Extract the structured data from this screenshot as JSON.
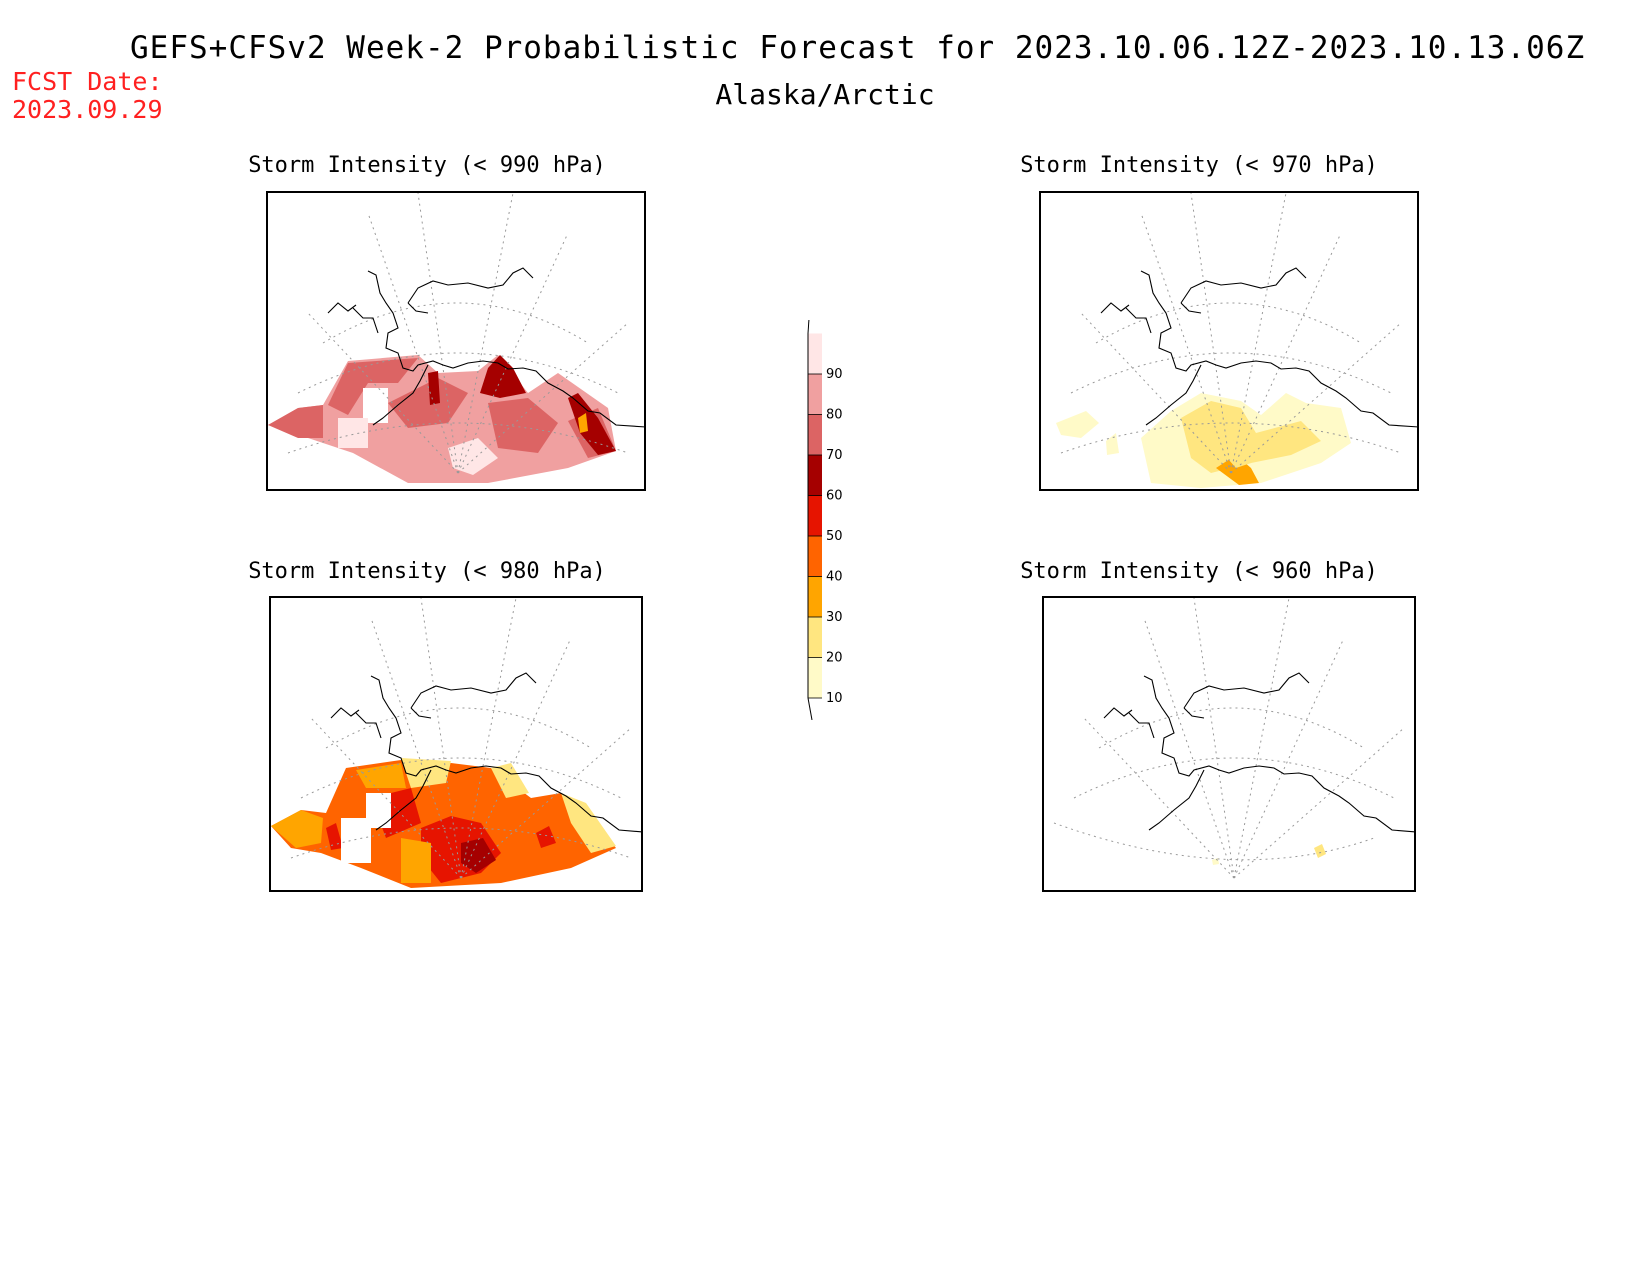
{
  "header": {
    "title": "GEFS+CFSv2 Week-2 Probabilistic Forecast for 2023.10.06.12Z-2023.10.13.06Z",
    "subtitle": "Alaska/Arctic",
    "fcst_label": "FCST Date:",
    "fcst_date": "2023.09.29"
  },
  "panels": [
    {
      "title": "Storm Intensity (< 990 hPa)",
      "intensity": "high"
    },
    {
      "title": "Storm Intensity (< 970 hPa)",
      "intensity": "low"
    },
    {
      "title": "Storm Intensity (< 980 hPa)",
      "intensity": "medium"
    },
    {
      "title": "Storm Intensity (< 960 hPa)",
      "intensity": "minimal"
    }
  ],
  "colorbar": {
    "ticks": [
      "10",
      "20",
      "30",
      "40",
      "50",
      "60",
      "70",
      "80",
      "90"
    ],
    "colors": [
      "#fffac8",
      "#ffe680",
      "#ffa500",
      "#ff6400",
      "#e61400",
      "#a50000",
      "#dc6464",
      "#f0a0a0",
      "#ffe6e6"
    ]
  }
}
